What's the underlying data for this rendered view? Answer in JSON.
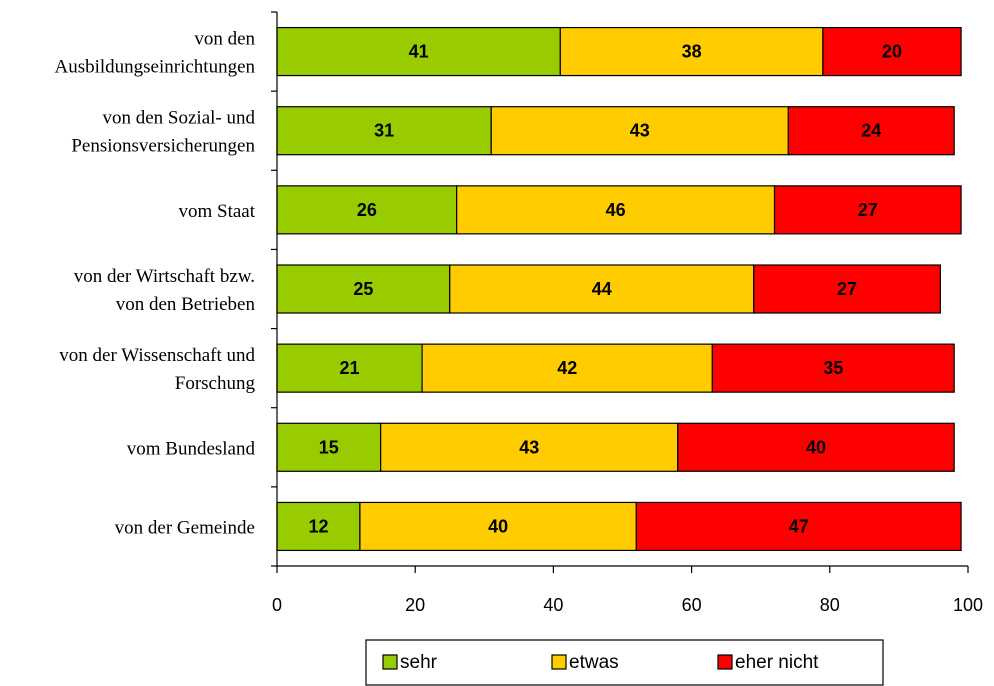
{
  "chart_data": {
    "type": "bar",
    "orientation": "horizontal",
    "stacked": true,
    "categories": [
      [
        "von den",
        "Ausbildungseinrichtungen"
      ],
      [
        "von den Sozial- und",
        "Pensionsversicherungen"
      ],
      [
        "vom Staat"
      ],
      [
        "von der Wirtschaft bzw.",
        "von den Betrieben"
      ],
      [
        "von der Wissenschaft und",
        "Forschung"
      ],
      [
        "vom Bundesland"
      ],
      [
        "von der Gemeinde"
      ]
    ],
    "series": [
      {
        "name": "sehr",
        "color": "#99cc00",
        "values": [
          41,
          31,
          26,
          25,
          21,
          15,
          12
        ]
      },
      {
        "name": "etwas",
        "color": "#ffcc00",
        "values": [
          38,
          43,
          46,
          44,
          42,
          43,
          40
        ]
      },
      {
        "name": "eher nicht",
        "color": "#ff0000",
        "values": [
          20,
          24,
          27,
          27,
          35,
          40,
          47
        ]
      }
    ],
    "xlim": [
      0,
      100
    ],
    "xticks": [
      "0",
      "20",
      "40",
      "60",
      "80",
      "100"
    ],
    "grid": false,
    "legend_position": "bottom"
  }
}
